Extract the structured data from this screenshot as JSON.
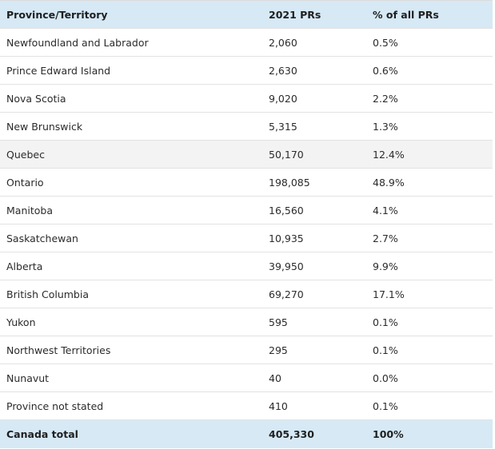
{
  "table": {
    "headers": [
      "Province/Territory",
      "2021 PRs",
      "% of all PRs"
    ],
    "rows": [
      [
        "Newfoundland and Labrador",
        "2,060",
        "0.5%"
      ],
      [
        "Prince Edward Island",
        "2,630",
        "0.6%"
      ],
      [
        "Nova Scotia",
        "9,020",
        "2.2%"
      ],
      [
        "New Brunswick",
        "5,315",
        "1.3%"
      ],
      [
        "Quebec",
        "50,170",
        "12.4%"
      ],
      [
        "Ontario",
        "198,085",
        "48.9%"
      ],
      [
        "Manitoba",
        "16,560",
        "4.1%"
      ],
      [
        "Saskatchewan",
        "10,935",
        "2.7%"
      ],
      [
        "Alberta",
        "39,950",
        "9.9%"
      ],
      [
        "British Columbia",
        "69,270",
        "17.1%"
      ],
      [
        "Yukon",
        "595",
        "0.1%"
      ],
      [
        "Northwest Territories",
        "295",
        "0.1%"
      ],
      [
        "Nunavut",
        "40",
        "0.0%"
      ],
      [
        "Province not stated",
        "410",
        "0.1%"
      ]
    ],
    "total": [
      "Canada total",
      "405,330",
      "100%"
    ]
  },
  "colors": {
    "header_bg": "#d6e9f5",
    "shaded_row_bg": "#f3f3f3",
    "border": "#e2e2e2"
  }
}
